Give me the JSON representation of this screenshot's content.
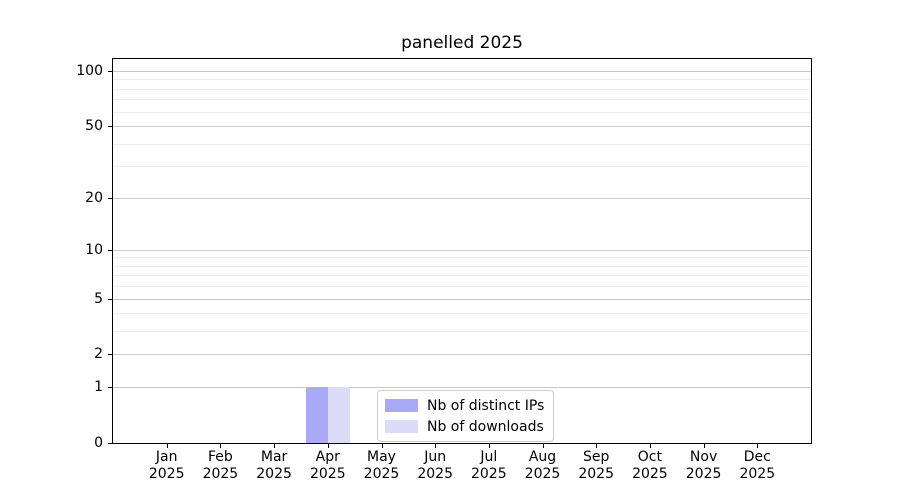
{
  "figure": {
    "background": "#ffffff"
  },
  "chart_data": {
    "type": "bar",
    "title": "panelled 2025",
    "categories": [
      "Jan",
      "Feb",
      "Mar",
      "Apr",
      "May",
      "Jun",
      "Jul",
      "Aug",
      "Sep",
      "Oct",
      "Nov",
      "Dec"
    ],
    "year_label": "2025",
    "series": [
      {
        "name": "Nb of distinct IPs",
        "color": "#a9a9f8",
        "values": [
          0,
          0,
          0,
          1,
          0,
          0,
          0,
          0,
          0,
          0,
          0,
          0
        ]
      },
      {
        "name": "Nb of downloads",
        "color": "#dcdcf9",
        "values": [
          0,
          0,
          0,
          1,
          0,
          0,
          0,
          0,
          0,
          0,
          0,
          0
        ]
      }
    ],
    "yscale": "log1p",
    "ylim": [
      0,
      116
    ],
    "yticks": [
      0,
      1,
      2,
      5,
      10,
      20,
      50,
      100
    ],
    "minor_gridlines": [
      3,
      4,
      6,
      7,
      8,
      9,
      30,
      40,
      60,
      70,
      80,
      90
    ],
    "grid": true,
    "legend": {
      "position": "lower center"
    },
    "colors": {
      "major_grid": "#c9c9c9",
      "minor_grid": "#ededed",
      "spine": "#000000",
      "text": "#000000"
    }
  }
}
